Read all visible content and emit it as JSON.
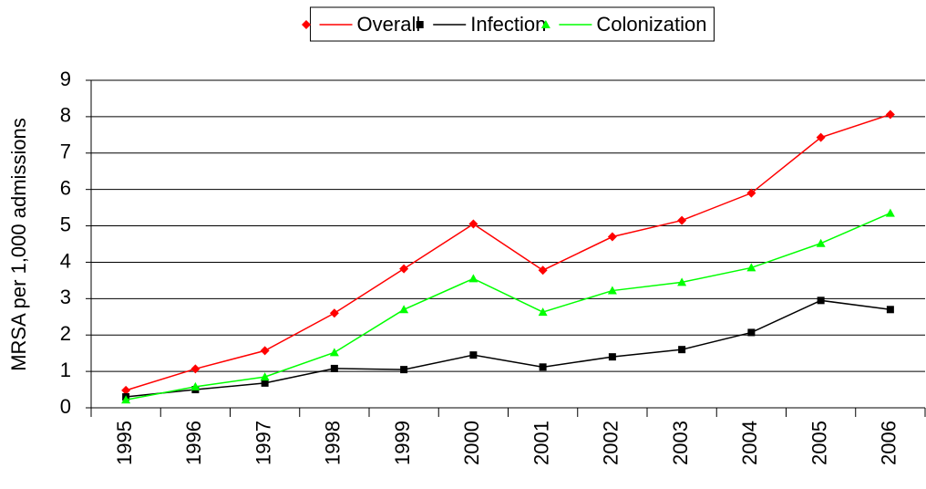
{
  "chart_data": {
    "type": "line",
    "y_label": "MRSA per 1,000 admissions",
    "categories": [
      "1995",
      "1996",
      "1997",
      "1998",
      "1999",
      "2000",
      "2001",
      "2002",
      "2003",
      "2004",
      "2005",
      "2006"
    ],
    "series": [
      {
        "name": "Overall",
        "color": "#ff0000",
        "marker": "diamond",
        "values": [
          0.48,
          1.07,
          1.57,
          2.6,
          3.82,
          5.05,
          3.78,
          4.7,
          5.15,
          5.9,
          7.43,
          8.06
        ]
      },
      {
        "name": "Infection",
        "color": "#000000",
        "marker": "square",
        "values": [
          0.3,
          0.5,
          0.68,
          1.08,
          1.05,
          1.45,
          1.12,
          1.4,
          1.6,
          2.07,
          2.95,
          2.7
        ]
      },
      {
        "name": "Colonization",
        "color": "#00ff00",
        "marker": "triangle",
        "values": [
          0.22,
          0.58,
          0.85,
          1.52,
          2.7,
          3.55,
          2.63,
          3.22,
          3.45,
          3.85,
          4.52,
          5.35
        ]
      }
    ],
    "ylim": [
      0,
      9
    ],
    "yticks": [
      0,
      1,
      2,
      3,
      4,
      5,
      6,
      7,
      8,
      9
    ],
    "grid": true,
    "legend": "top"
  }
}
